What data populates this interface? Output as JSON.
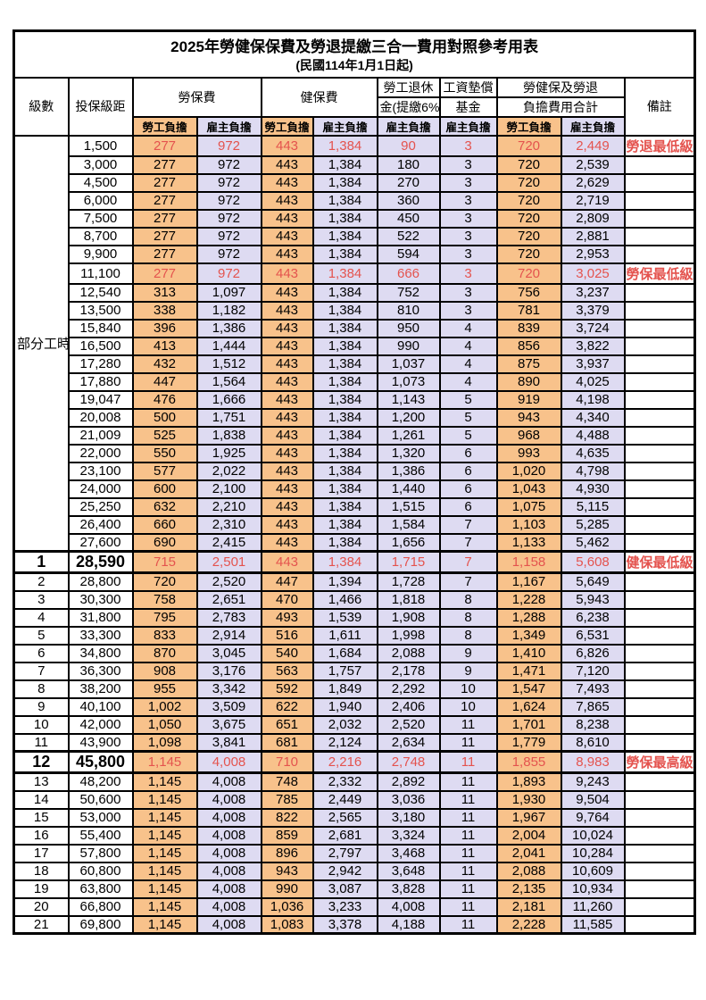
{
  "title": "2025年勞健保保費及勞退提繳三合一費用對照參考用表",
  "subtitle": "(民國114年1月1日起)",
  "colors": {
    "employee_column_fill": "#f8c28b",
    "employer_column_fill": "#dedbf2",
    "highlight_text": "#e4534e",
    "border": "#000000",
    "background": "#ffffff"
  },
  "header": {
    "level": "級數",
    "bracket": "投保級距",
    "labor_insurance": "勞保費",
    "health_insurance": "健保費",
    "pension_line1": "勞工退休",
    "pension_line2": "金(提繳6%)",
    "wage_fund_line1": "工資墊償",
    "wage_fund_line2": "基金",
    "total_line1": "勞健保及勞退",
    "total_line2": "負擔費用合計",
    "remark": "備註",
    "employee_share": "勞工負擔",
    "employer_share": "雇主負擔"
  },
  "part_time_label": "部分工時",
  "part_time_row_count": 23,
  "rows": [
    {
      "level": "",
      "bracket": "1,500",
      "li_emp": "277",
      "li_er": "972",
      "hi_emp": "443",
      "hi_er": "1,384",
      "pension": "90",
      "fund": "3",
      "tot_emp": "720",
      "tot_er": "2,449",
      "remark": "勞退最低級距",
      "hl": true,
      "big": false
    },
    {
      "level": "",
      "bracket": "3,000",
      "li_emp": "277",
      "li_er": "972",
      "hi_emp": "443",
      "hi_er": "1,384",
      "pension": "180",
      "fund": "3",
      "tot_emp": "720",
      "tot_er": "2,539",
      "remark": "",
      "hl": false,
      "big": false
    },
    {
      "level": "",
      "bracket": "4,500",
      "li_emp": "277",
      "li_er": "972",
      "hi_emp": "443",
      "hi_er": "1,384",
      "pension": "270",
      "fund": "3",
      "tot_emp": "720",
      "tot_er": "2,629",
      "remark": "",
      "hl": false,
      "big": false
    },
    {
      "level": "",
      "bracket": "6,000",
      "li_emp": "277",
      "li_er": "972",
      "hi_emp": "443",
      "hi_er": "1,384",
      "pension": "360",
      "fund": "3",
      "tot_emp": "720",
      "tot_er": "2,719",
      "remark": "",
      "hl": false,
      "big": false
    },
    {
      "level": "",
      "bracket": "7,500",
      "li_emp": "277",
      "li_er": "972",
      "hi_emp": "443",
      "hi_er": "1,384",
      "pension": "450",
      "fund": "3",
      "tot_emp": "720",
      "tot_er": "2,809",
      "remark": "",
      "hl": false,
      "big": false
    },
    {
      "level": "",
      "bracket": "8,700",
      "li_emp": "277",
      "li_er": "972",
      "hi_emp": "443",
      "hi_er": "1,384",
      "pension": "522",
      "fund": "3",
      "tot_emp": "720",
      "tot_er": "2,881",
      "remark": "",
      "hl": false,
      "big": false
    },
    {
      "level": "",
      "bracket": "9,900",
      "li_emp": "277",
      "li_er": "972",
      "hi_emp": "443",
      "hi_er": "1,384",
      "pension": "594",
      "fund": "3",
      "tot_emp": "720",
      "tot_er": "2,953",
      "remark": "",
      "hl": false,
      "big": false
    },
    {
      "level": "",
      "bracket": "11,100",
      "li_emp": "277",
      "li_er": "972",
      "hi_emp": "443",
      "hi_er": "1,384",
      "pension": "666",
      "fund": "3",
      "tot_emp": "720",
      "tot_er": "3,025",
      "remark": "勞保最低級距",
      "hl": true,
      "big": false
    },
    {
      "level": "",
      "bracket": "12,540",
      "li_emp": "313",
      "li_er": "1,097",
      "hi_emp": "443",
      "hi_er": "1,384",
      "pension": "752",
      "fund": "3",
      "tot_emp": "756",
      "tot_er": "3,237",
      "remark": "",
      "hl": false,
      "big": false
    },
    {
      "level": "",
      "bracket": "13,500",
      "li_emp": "338",
      "li_er": "1,182",
      "hi_emp": "443",
      "hi_er": "1,384",
      "pension": "810",
      "fund": "3",
      "tot_emp": "781",
      "tot_er": "3,379",
      "remark": "",
      "hl": false,
      "big": false
    },
    {
      "level": "",
      "bracket": "15,840",
      "li_emp": "396",
      "li_er": "1,386",
      "hi_emp": "443",
      "hi_er": "1,384",
      "pension": "950",
      "fund": "4",
      "tot_emp": "839",
      "tot_er": "3,724",
      "remark": "",
      "hl": false,
      "big": false
    },
    {
      "level": "",
      "bracket": "16,500",
      "li_emp": "413",
      "li_er": "1,444",
      "hi_emp": "443",
      "hi_er": "1,384",
      "pension": "990",
      "fund": "4",
      "tot_emp": "856",
      "tot_er": "3,822",
      "remark": "",
      "hl": false,
      "big": false
    },
    {
      "level": "",
      "bracket": "17,280",
      "li_emp": "432",
      "li_er": "1,512",
      "hi_emp": "443",
      "hi_er": "1,384",
      "pension": "1,037",
      "fund": "4",
      "tot_emp": "875",
      "tot_er": "3,937",
      "remark": "",
      "hl": false,
      "big": false
    },
    {
      "level": "",
      "bracket": "17,880",
      "li_emp": "447",
      "li_er": "1,564",
      "hi_emp": "443",
      "hi_er": "1,384",
      "pension": "1,073",
      "fund": "4",
      "tot_emp": "890",
      "tot_er": "4,025",
      "remark": "",
      "hl": false,
      "big": false
    },
    {
      "level": "",
      "bracket": "19,047",
      "li_emp": "476",
      "li_er": "1,666",
      "hi_emp": "443",
      "hi_er": "1,384",
      "pension": "1,143",
      "fund": "5",
      "tot_emp": "919",
      "tot_er": "4,198",
      "remark": "",
      "hl": false,
      "big": false
    },
    {
      "level": "",
      "bracket": "20,008",
      "li_emp": "500",
      "li_er": "1,751",
      "hi_emp": "443",
      "hi_er": "1,384",
      "pension": "1,200",
      "fund": "5",
      "tot_emp": "943",
      "tot_er": "4,340",
      "remark": "",
      "hl": false,
      "big": false
    },
    {
      "level": "",
      "bracket": "21,009",
      "li_emp": "525",
      "li_er": "1,838",
      "hi_emp": "443",
      "hi_er": "1,384",
      "pension": "1,261",
      "fund": "5",
      "tot_emp": "968",
      "tot_er": "4,488",
      "remark": "",
      "hl": false,
      "big": false
    },
    {
      "level": "",
      "bracket": "22,000",
      "li_emp": "550",
      "li_er": "1,925",
      "hi_emp": "443",
      "hi_er": "1,384",
      "pension": "1,320",
      "fund": "6",
      "tot_emp": "993",
      "tot_er": "4,635",
      "remark": "",
      "hl": false,
      "big": false
    },
    {
      "level": "",
      "bracket": "23,100",
      "li_emp": "577",
      "li_er": "2,022",
      "hi_emp": "443",
      "hi_er": "1,384",
      "pension": "1,386",
      "fund": "6",
      "tot_emp": "1,020",
      "tot_er": "4,798",
      "remark": "",
      "hl": false,
      "big": false
    },
    {
      "level": "",
      "bracket": "24,000",
      "li_emp": "600",
      "li_er": "2,100",
      "hi_emp": "443",
      "hi_er": "1,384",
      "pension": "1,440",
      "fund": "6",
      "tot_emp": "1,043",
      "tot_er": "4,930",
      "remark": "",
      "hl": false,
      "big": false
    },
    {
      "level": "",
      "bracket": "25,250",
      "li_emp": "632",
      "li_er": "2,210",
      "hi_emp": "443",
      "hi_er": "1,384",
      "pension": "1,515",
      "fund": "6",
      "tot_emp": "1,075",
      "tot_er": "5,115",
      "remark": "",
      "hl": false,
      "big": false
    },
    {
      "level": "",
      "bracket": "26,400",
      "li_emp": "660",
      "li_er": "2,310",
      "hi_emp": "443",
      "hi_er": "1,384",
      "pension": "1,584",
      "fund": "7",
      "tot_emp": "1,103",
      "tot_er": "5,285",
      "remark": "",
      "hl": false,
      "big": false
    },
    {
      "level": "",
      "bracket": "27,600",
      "li_emp": "690",
      "li_er": "2,415",
      "hi_emp": "443",
      "hi_er": "1,384",
      "pension": "1,656",
      "fund": "7",
      "tot_emp": "1,133",
      "tot_er": "5,462",
      "remark": "",
      "hl": false,
      "big": false
    },
    {
      "level": "1",
      "bracket": "28,590",
      "li_emp": "715",
      "li_er": "2,501",
      "hi_emp": "443",
      "hi_er": "1,384",
      "pension": "1,715",
      "fund": "7",
      "tot_emp": "1,158",
      "tot_er": "5,608",
      "remark": "健保最低級距",
      "hl": true,
      "big": true
    },
    {
      "level": "2",
      "bracket": "28,800",
      "li_emp": "720",
      "li_er": "2,520",
      "hi_emp": "447",
      "hi_er": "1,394",
      "pension": "1,728",
      "fund": "7",
      "tot_emp": "1,167",
      "tot_er": "5,649",
      "remark": "",
      "hl": false,
      "big": false
    },
    {
      "level": "3",
      "bracket": "30,300",
      "li_emp": "758",
      "li_er": "2,651",
      "hi_emp": "470",
      "hi_er": "1,466",
      "pension": "1,818",
      "fund": "8",
      "tot_emp": "1,228",
      "tot_er": "5,943",
      "remark": "",
      "hl": false,
      "big": false
    },
    {
      "level": "4",
      "bracket": "31,800",
      "li_emp": "795",
      "li_er": "2,783",
      "hi_emp": "493",
      "hi_er": "1,539",
      "pension": "1,908",
      "fund": "8",
      "tot_emp": "1,288",
      "tot_er": "6,238",
      "remark": "",
      "hl": false,
      "big": false
    },
    {
      "level": "5",
      "bracket": "33,300",
      "li_emp": "833",
      "li_er": "2,914",
      "hi_emp": "516",
      "hi_er": "1,611",
      "pension": "1,998",
      "fund": "8",
      "tot_emp": "1,349",
      "tot_er": "6,531",
      "remark": "",
      "hl": false,
      "big": false
    },
    {
      "level": "6",
      "bracket": "34,800",
      "li_emp": "870",
      "li_er": "3,045",
      "hi_emp": "540",
      "hi_er": "1,684",
      "pension": "2,088",
      "fund": "9",
      "tot_emp": "1,410",
      "tot_er": "6,826",
      "remark": "",
      "hl": false,
      "big": false
    },
    {
      "level": "7",
      "bracket": "36,300",
      "li_emp": "908",
      "li_er": "3,176",
      "hi_emp": "563",
      "hi_er": "1,757",
      "pension": "2,178",
      "fund": "9",
      "tot_emp": "1,471",
      "tot_er": "7,120",
      "remark": "",
      "hl": false,
      "big": false
    },
    {
      "level": "8",
      "bracket": "38,200",
      "li_emp": "955",
      "li_er": "3,342",
      "hi_emp": "592",
      "hi_er": "1,849",
      "pension": "2,292",
      "fund": "10",
      "tot_emp": "1,547",
      "tot_er": "7,493",
      "remark": "",
      "hl": false,
      "big": false
    },
    {
      "level": "9",
      "bracket": "40,100",
      "li_emp": "1,002",
      "li_er": "3,509",
      "hi_emp": "622",
      "hi_er": "1,940",
      "pension": "2,406",
      "fund": "10",
      "tot_emp": "1,624",
      "tot_er": "7,865",
      "remark": "",
      "hl": false,
      "big": false
    },
    {
      "level": "10",
      "bracket": "42,000",
      "li_emp": "1,050",
      "li_er": "3,675",
      "hi_emp": "651",
      "hi_er": "2,032",
      "pension": "2,520",
      "fund": "11",
      "tot_emp": "1,701",
      "tot_er": "8,238",
      "remark": "",
      "hl": false,
      "big": false
    },
    {
      "level": "11",
      "bracket": "43,900",
      "li_emp": "1,098",
      "li_er": "3,841",
      "hi_emp": "681",
      "hi_er": "2,124",
      "pension": "2,634",
      "fund": "11",
      "tot_emp": "1,779",
      "tot_er": "8,610",
      "remark": "",
      "hl": false,
      "big": false
    },
    {
      "level": "12",
      "bracket": "45,800",
      "li_emp": "1,145",
      "li_er": "4,008",
      "hi_emp": "710",
      "hi_er": "2,216",
      "pension": "2,748",
      "fund": "11",
      "tot_emp": "1,855",
      "tot_er": "8,983",
      "remark": "勞保最高級距",
      "hl": true,
      "big": true
    },
    {
      "level": "13",
      "bracket": "48,200",
      "li_emp": "1,145",
      "li_er": "4,008",
      "hi_emp": "748",
      "hi_er": "2,332",
      "pension": "2,892",
      "fund": "11",
      "tot_emp": "1,893",
      "tot_er": "9,243",
      "remark": "",
      "hl": false,
      "big": false
    },
    {
      "level": "14",
      "bracket": "50,600",
      "li_emp": "1,145",
      "li_er": "4,008",
      "hi_emp": "785",
      "hi_er": "2,449",
      "pension": "3,036",
      "fund": "11",
      "tot_emp": "1,930",
      "tot_er": "9,504",
      "remark": "",
      "hl": false,
      "big": false
    },
    {
      "level": "15",
      "bracket": "53,000",
      "li_emp": "1,145",
      "li_er": "4,008",
      "hi_emp": "822",
      "hi_er": "2,565",
      "pension": "3,180",
      "fund": "11",
      "tot_emp": "1,967",
      "tot_er": "9,764",
      "remark": "",
      "hl": false,
      "big": false
    },
    {
      "level": "16",
      "bracket": "55,400",
      "li_emp": "1,145",
      "li_er": "4,008",
      "hi_emp": "859",
      "hi_er": "2,681",
      "pension": "3,324",
      "fund": "11",
      "tot_emp": "2,004",
      "tot_er": "10,024",
      "remark": "",
      "hl": false,
      "big": false
    },
    {
      "level": "17",
      "bracket": "57,800",
      "li_emp": "1,145",
      "li_er": "4,008",
      "hi_emp": "896",
      "hi_er": "2,797",
      "pension": "3,468",
      "fund": "11",
      "tot_emp": "2,041",
      "tot_er": "10,284",
      "remark": "",
      "hl": false,
      "big": false
    },
    {
      "level": "18",
      "bracket": "60,800",
      "li_emp": "1,145",
      "li_er": "4,008",
      "hi_emp": "943",
      "hi_er": "2,942",
      "pension": "3,648",
      "fund": "11",
      "tot_emp": "2,088",
      "tot_er": "10,609",
      "remark": "",
      "hl": false,
      "big": false
    },
    {
      "level": "19",
      "bracket": "63,800",
      "li_emp": "1,145",
      "li_er": "4,008",
      "hi_emp": "990",
      "hi_er": "3,087",
      "pension": "3,828",
      "fund": "11",
      "tot_emp": "2,135",
      "tot_er": "10,934",
      "remark": "",
      "hl": false,
      "big": false
    },
    {
      "level": "20",
      "bracket": "66,800",
      "li_emp": "1,145",
      "li_er": "4,008",
      "hi_emp": "1,036",
      "hi_er": "3,233",
      "pension": "4,008",
      "fund": "11",
      "tot_emp": "2,181",
      "tot_er": "11,260",
      "remark": "",
      "hl": false,
      "big": false
    },
    {
      "level": "21",
      "bracket": "69,800",
      "li_emp": "1,145",
      "li_er": "4,008",
      "hi_emp": "1,083",
      "hi_er": "3,378",
      "pension": "4,188",
      "fund": "11",
      "tot_emp": "2,228",
      "tot_er": "11,585",
      "remark": "",
      "hl": false,
      "big": false
    }
  ]
}
